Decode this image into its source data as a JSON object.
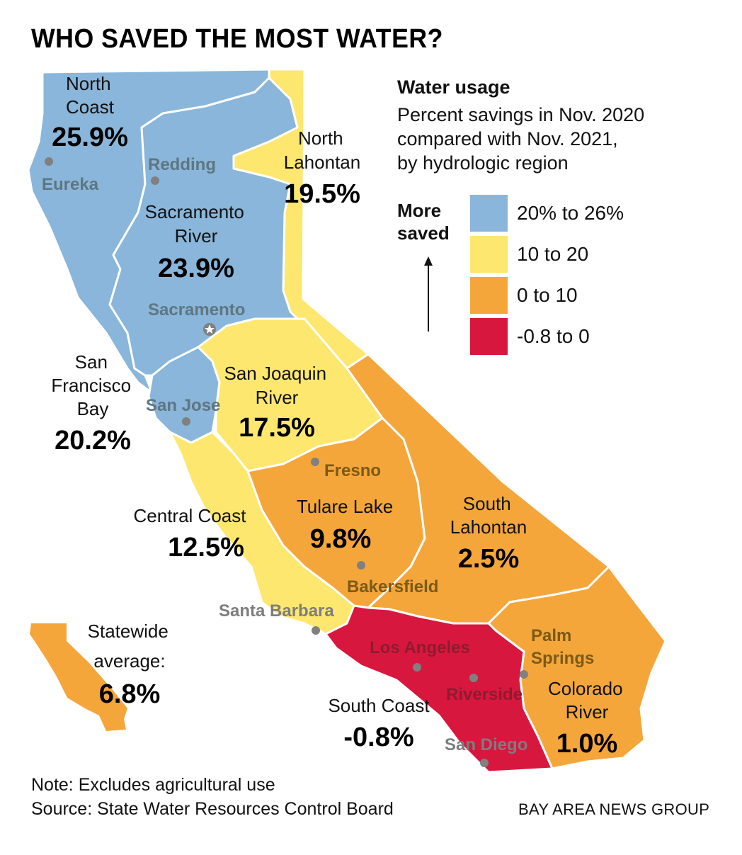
{
  "title": "WHO SAVED THE MOST WATER?",
  "legend": {
    "title": "Water usage",
    "subtitle_lines": [
      "Percent savings in Nov. 2020",
      "compared with Nov. 2021,",
      "by hydrologic region"
    ],
    "direction_label": [
      "More",
      "saved"
    ],
    "items": [
      {
        "label": "20% to 26%",
        "color": "#89b6da"
      },
      {
        "label": "10 to 20",
        "color": "#fde76f"
      },
      {
        "label": "0 to 10",
        "color": "#f5a63b"
      },
      {
        "label": "-0.8 to 0",
        "color": "#d8173f"
      }
    ]
  },
  "regions": {
    "north_coast": {
      "name": [
        "North",
        "Coast"
      ],
      "value": "25.9%",
      "color": "#89b6da"
    },
    "sacramento_river": {
      "name": [
        "Sacramento",
        "River"
      ],
      "value": "23.9%",
      "color": "#89b6da"
    },
    "north_lahontan": {
      "name": [
        "North",
        "Lahontan"
      ],
      "value": "19.5%",
      "color": "#fde76f"
    },
    "san_francisco_bay": {
      "name": [
        "San",
        "Francisco",
        "Bay"
      ],
      "value": "20.2%",
      "color": "#89b6da"
    },
    "san_joaquin_river": {
      "name": [
        "San Joaquin",
        "River"
      ],
      "value": "17.5%",
      "color": "#fde76f"
    },
    "central_coast": {
      "name": [
        "Central Coast"
      ],
      "value": "12.5%",
      "color": "#fde76f"
    },
    "tulare_lake": {
      "name": [
        "Tulare Lake"
      ],
      "value": "9.8%",
      "color": "#f5a63b"
    },
    "south_lahontan": {
      "name": [
        "South",
        "Lahontan"
      ],
      "value": "2.5%",
      "color": "#f5a63b"
    },
    "colorado_river": {
      "name": [
        "Colorado",
        "River"
      ],
      "value": "1.0%",
      "color": "#f5a63b"
    },
    "south_coast": {
      "name": [
        "South Coast"
      ],
      "value": "-0.8%",
      "color": "#d8173f"
    }
  },
  "cities": {
    "eureka": "Eureka",
    "redding": "Redding",
    "sacramento": "Sacramento",
    "san_jose": "San Jose",
    "fresno": "Fresno",
    "bakersfield": "Bakersfield",
    "santa_barbara": "Santa Barbara",
    "los_angeles": "Los Angeles",
    "riverside": "Riverside",
    "palm_springs": [
      "Palm",
      "Springs"
    ],
    "san_diego": "San Diego"
  },
  "statewide": {
    "label": [
      "Statewide",
      "average:"
    ],
    "value": "6.8%",
    "color": "#f5a63b"
  },
  "note": "Note: Excludes agricultural use",
  "source": "Source: State Water Resources Control Board",
  "credit": "BAY AREA NEWS GROUP"
}
